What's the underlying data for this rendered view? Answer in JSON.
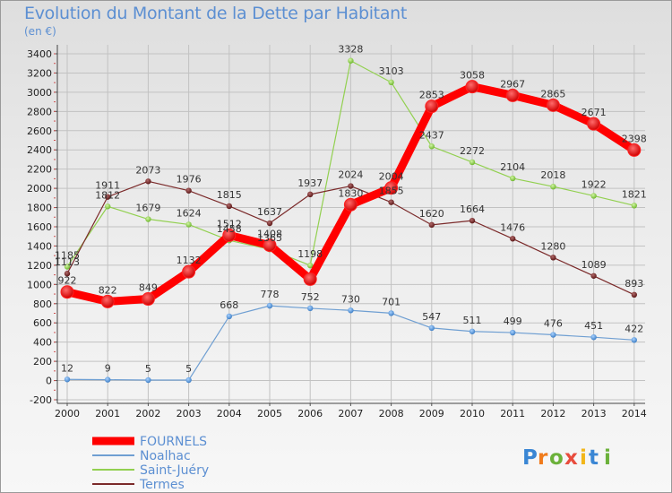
{
  "title": "Evolution du Montant de la Dette par Habitant",
  "unit_label": "(en €)",
  "logo_text": "Proxiti",
  "chart_data": {
    "type": "line",
    "title": "Evolution du Montant de la Dette par Habitant",
    "ylabel": "(en €)",
    "x": [
      "2000",
      "2001",
      "2002",
      "2003",
      "2004",
      "2005",
      "2006",
      "2007",
      "2008",
      "2009",
      "2010",
      "2011",
      "2012",
      "2013",
      "2014"
    ],
    "ylim": [
      -200,
      3400
    ],
    "yticks": [
      "-200",
      "0",
      "200",
      "400",
      "600",
      "800",
      "1000",
      "1200",
      "1400",
      "1600",
      "1800",
      "2000",
      "2200",
      "2400",
      "2600",
      "2800",
      "3000",
      "3200",
      "3400"
    ],
    "grid": true,
    "legend_position": "bottom-left",
    "series": [
      {
        "name": "FOURNELS",
        "color": "#ff0000",
        "values": [
          922,
          822,
          849,
          1132,
          1512,
          1408,
          1055,
          1830,
          2004,
          2853,
          3058,
          2967,
          2865,
          2671,
          2398
        ]
      },
      {
        "name": "Noalhac",
        "color": "#6f9fd2",
        "values": [
          12,
          9,
          5,
          5,
          668,
          778,
          752,
          730,
          701,
          547,
          511,
          499,
          476,
          451,
          422
        ]
      },
      {
        "name": "Saint-Juéry",
        "color": "#92d050",
        "values": [
          1185,
          1812,
          1679,
          1624,
          1458,
          1365,
          1198,
          3328,
          3103,
          2437,
          2272,
          2104,
          2018,
          1922,
          1821
        ]
      },
      {
        "name": "Termes",
        "color": "#7b2a2a",
        "values": [
          1113,
          1911,
          2073,
          1976,
          1815,
          1637,
          1937,
          2024,
          1855,
          1620,
          1664,
          1476,
          1280,
          1089,
          893
        ]
      }
    ],
    "data_labels": [
      [
        "922",
        "822",
        "849",
        "1132",
        "1512",
        "1408",
        "",
        "1830",
        "2004",
        "2853",
        "3058",
        "2967",
        "2865",
        "2671",
        "2398"
      ],
      [
        "12",
        "9",
        "5",
        "5",
        "668",
        "778",
        "752",
        "730",
        "701",
        "547",
        "511",
        "499",
        "476",
        "451",
        "422"
      ],
      [
        "1185",
        "1812",
        "1679",
        "1624",
        "1458",
        "1365",
        "1198",
        "3328",
        "3103",
        "2437",
        "2272",
        "2104",
        "2018",
        "1922",
        "1821"
      ],
      [
        "1113",
        "1911",
        "2073",
        "1976",
        "1815",
        "1637",
        "1937",
        "2024",
        "1855",
        "1620",
        "1664",
        "1476",
        "1280",
        "1089",
        "893"
      ]
    ]
  }
}
